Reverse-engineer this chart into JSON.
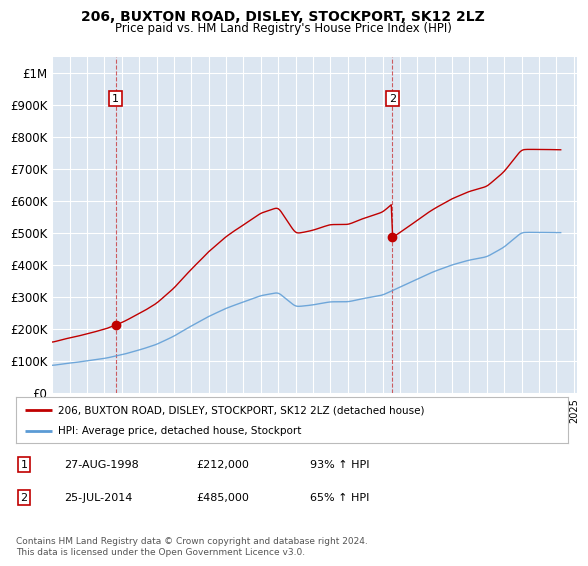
{
  "title": "206, BUXTON ROAD, DISLEY, STOCKPORT, SK12 2LZ",
  "subtitle": "Price paid vs. HM Land Registry's House Price Index (HPI)",
  "ylim": [
    0,
    1050000
  ],
  "yticks": [
    0,
    100000,
    200000,
    300000,
    400000,
    500000,
    600000,
    700000,
    800000,
    900000,
    1000000
  ],
  "ytick_labels": [
    "£0",
    "£100K",
    "£200K",
    "£300K",
    "£400K",
    "£500K",
    "£600K",
    "£700K",
    "£800K",
    "£900K",
    "£1M"
  ],
  "bg_color": "#dce6f1",
  "grid_color": "#ffffff",
  "sale1_date": 1998.65,
  "sale1_price": 212000,
  "sale1_label": "1",
  "sale2_date": 2014.56,
  "sale2_price": 485000,
  "sale2_label": "2",
  "legend_line1": "206, BUXTON ROAD, DISLEY, STOCKPORT, SK12 2LZ (detached house)",
  "legend_line2": "HPI: Average price, detached house, Stockport",
  "footer": "Contains HM Land Registry data © Crown copyright and database right 2024.\nThis data is licensed under the Open Government Licence v3.0.",
  "red_color": "#c00000",
  "blue_color": "#5b9bd5",
  "sale1_date_str": "27-AUG-1998",
  "sale2_date_str": "25-JUL-2014",
  "sale1_price_str": "£212,000",
  "sale2_price_str": "£485,000",
  "sale1_hpi_str": "93% ↑ HPI",
  "sale2_hpi_str": "65% ↑ HPI"
}
